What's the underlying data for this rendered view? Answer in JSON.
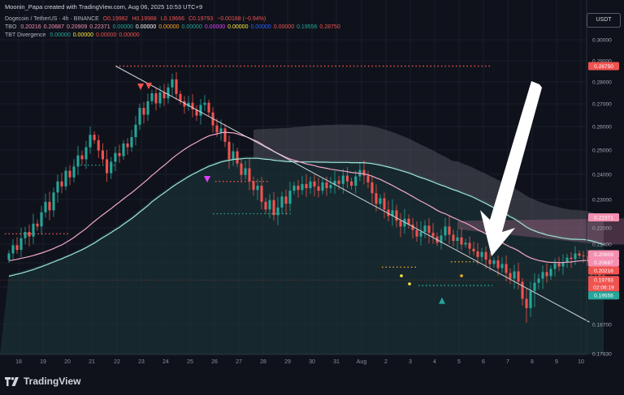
{
  "credit": "Moonin_Papa created with TradingView.com, Aug 06, 2025 10:53 UTC+9",
  "legend": {
    "symbol_line": {
      "name": "Dogecoin / TetherUS · 4h · BINANCE",
      "open": "O0.19982",
      "high": "H0.19988",
      "low": "L0.19666",
      "close": "C0.19793",
      "change": "−0.00188 (−0.94%)"
    },
    "tbo_line": {
      "name": "TBO",
      "values": [
        "0.20216",
        "0.20687",
        "0.20909",
        "0.22371",
        "0.00000",
        "0.00000",
        "0.00000",
        "0.00000",
        "0.00000",
        "0.00000",
        "0.00000",
        "0.00000",
        "0.19556",
        "0.28750"
      ],
      "colors": [
        "#f48fb1",
        "#f48fb1",
        "#f48fb1",
        "#f48fb1",
        "#26a69a",
        "#ffffff",
        "#ffa726",
        "#26a69a",
        "#e040fb",
        "#ffeb3b",
        "#2962ff",
        "#ef5350",
        "#26a69a",
        "#ef5350"
      ]
    },
    "tbt_line": {
      "name": "TBT Divergence",
      "values": [
        "0.00000",
        "0.00000",
        "0.00000",
        "0.00000"
      ],
      "colors": [
        "#26a69a",
        "#ffeb3b",
        "#ef5350",
        "#ef5350"
      ]
    }
  },
  "currency": "USDT",
  "brand": "TradingView",
  "chart_data": {
    "type": "candlestick",
    "x_ticks": [
      "18",
      "19",
      "20",
      "21",
      "22",
      "23",
      "24",
      "25",
      "26",
      "27",
      "28",
      "29",
      "30",
      "31",
      "Aug",
      "2",
      "3",
      "4",
      "5",
      "6",
      "7",
      "8",
      "9",
      "10"
    ],
    "y_ticks": [
      "0.30000",
      "0.29000",
      "0.28000",
      "0.27000",
      "0.26000",
      "0.25000",
      "0.24000",
      "0.23000",
      "0.22000",
      "0.21400",
      "0.20500",
      "0.19500",
      "0.18700",
      "0.17830"
    ],
    "ylim": [
      0.1783,
      0.305
    ],
    "price_labels": [
      {
        "value": 0.2875,
        "text": "0.28750",
        "color": "#ef5350"
      },
      {
        "value": 0.22371,
        "text": "0.22371",
        "color": "#f48fb1"
      },
      {
        "value": 0.20909,
        "text": "0.20909",
        "color": "#f48fb1"
      },
      {
        "value": 0.20687,
        "text": "0.20687",
        "color": "#f48fb1"
      },
      {
        "value": 0.20216,
        "text": "0.20216",
        "color": "#ef5350"
      },
      {
        "value": 0.19793,
        "text": "0.19793",
        "color": "#ef5350"
      },
      {
        "value": 0.19556,
        "text": "0.19556",
        "color": "#26a69a"
      }
    ],
    "countdown": "02:06:19",
    "start_day": 17.6,
    "candles_per_day": 6,
    "series": [
      {
        "name": "Close",
        "values": [
          0.2095,
          0.2135,
          0.2112,
          0.2162,
          0.2185,
          0.2168,
          0.2215,
          0.2205,
          0.2255,
          0.2292,
          0.2262,
          0.2328,
          0.2372,
          0.2352,
          0.2415,
          0.2388,
          0.2432,
          0.2478,
          0.2462,
          0.2512,
          0.2565,
          0.2542,
          0.2498,
          0.2462,
          0.2405,
          0.2452,
          0.2488,
          0.2475,
          0.2528,
          0.2512,
          0.2555,
          0.2608,
          0.2682,
          0.2652,
          0.2712,
          0.2748,
          0.2702,
          0.2752,
          0.2725,
          0.2775,
          0.2812,
          0.2745,
          0.2712,
          0.2688,
          0.2705,
          0.2675,
          0.2648,
          0.2695,
          0.2705,
          0.2662,
          0.2605,
          0.2575,
          0.2592,
          0.2535,
          0.2462,
          0.2495,
          0.2445,
          0.2398,
          0.2425,
          0.2372,
          0.2338,
          0.2355,
          0.2292,
          0.2265,
          0.2298,
          0.2245,
          0.2272,
          0.2312,
          0.2285,
          0.2335,
          0.2355,
          0.2338,
          0.2362,
          0.2345,
          0.2372,
          0.2352,
          0.2335,
          0.2368,
          0.2345,
          0.2358,
          0.2375,
          0.2362,
          0.2395,
          0.2372,
          0.2355,
          0.2392,
          0.2418,
          0.2395,
          0.2368,
          0.2325,
          0.2285,
          0.2305,
          0.2265,
          0.2242,
          0.2262,
          0.2225,
          0.2205,
          0.2232,
          0.2212,
          0.2192,
          0.2168,
          0.2185,
          0.2208,
          0.2182,
          0.2168,
          0.2145,
          0.2172,
          0.2205,
          0.2175,
          0.2152,
          0.2165,
          0.2138,
          0.2145,
          0.2118,
          0.2105,
          0.2078,
          0.2102,
          0.2065,
          0.2045,
          0.2062,
          0.2028,
          0.2045,
          0.2008,
          0.1985,
          0.2015,
          0.1972,
          0.1925,
          0.1905,
          0.1942,
          0.1968,
          0.1985,
          0.2012,
          0.1995,
          0.2025,
          0.2048,
          0.2035,
          0.2052,
          0.2075,
          0.2068,
          0.2095,
          0.2085,
          0.2082,
          0.2055,
          0.2025,
          0.2015,
          0.1998,
          0.1979
        ]
      }
    ],
    "ema_fast": [
      0.206,
      0.2063,
      0.2067,
      0.2071,
      0.2076,
      0.208,
      0.2085,
      0.2091,
      0.2097,
      0.2104,
      0.2111,
      0.2119,
      0.2128,
      0.2136,
      0.2146,
      0.2155,
      0.2165,
      0.2176,
      0.2187,
      0.2198,
      0.2211,
      0.2223,
      0.2235,
      0.2246,
      0.2257,
      0.2268,
      0.228,
      0.2291,
      0.2303,
      0.2315,
      0.2327,
      0.234,
      0.2354,
      0.2367,
      0.2381,
      0.2396,
      0.2409,
      0.2424,
      0.2437,
      0.2451,
      0.2466,
      0.2479,
      0.2491,
      0.2503,
      0.2514,
      0.2524,
      0.2533,
      0.2543,
      0.2552,
      0.256,
      0.2565,
      0.2569,
      0.2573,
      0.2576,
      0.2574,
      0.2573,
      0.2569,
      0.2563,
      0.2558,
      0.2551,
      0.2543,
      0.2536,
      0.2526,
      0.2515,
      0.2506,
      0.2495,
      0.2486,
      0.2478,
      0.247,
      0.2463,
      0.2458,
      0.2453,
      0.2448,
      0.2443,
      0.244,
      0.2436,
      0.2431,
      0.2428,
      0.2425,
      0.2421,
      0.2419,
      0.2416,
      0.2414,
      0.2411,
      0.2408,
      0.2406,
      0.2404,
      0.2402,
      0.2398,
      0.2393,
      0.2386,
      0.238,
      0.2372,
      0.2364,
      0.2356,
      0.2347,
      0.2338,
      0.233,
      0.2321,
      0.2312,
      0.2302,
      0.2294,
      0.2287,
      0.2279,
      0.2271,
      0.2262,
      0.2255,
      0.225,
      0.2243,
      0.2236,
      0.223,
      0.2223,
      0.2217,
      0.221,
      0.2202,
      0.2193,
      0.2186,
      0.2178,
      0.2169,
      0.2161,
      0.2153,
      0.2145,
      0.2136,
      0.2126,
      0.2118,
      0.2108,
      0.2095,
      0.2083,
      0.2074,
      0.2067,
      0.2061,
      0.2058,
      0.2054,
      0.2052,
      0.2052,
      0.2051,
      0.2051,
      0.2053,
      0.2054,
      0.2057,
      0.2059,
      0.2061,
      0.2061,
      0.2058,
      0.2055,
      0.2051,
      0.2045
    ],
    "ema_slow": [
      0.1995,
      0.1999,
      0.2003,
      0.2007,
      0.2012,
      0.2017,
      0.2022,
      0.2028,
      0.2034,
      0.204,
      0.2047,
      0.2054,
      0.2062,
      0.2069,
      0.2078,
      0.2086,
      0.2095,
      0.2104,
      0.2113,
      0.2123,
      0.2134,
      0.2144,
      0.2154,
      0.2164,
      0.2173,
      0.2183,
      0.2193,
      0.2202,
      0.2213,
      0.2223,
      0.2233,
      0.2244,
      0.2256,
      0.2267,
      0.2279,
      0.2292,
      0.2303,
      0.2315,
      0.2326,
      0.2338,
      0.235,
      0.2361,
      0.2371,
      0.2381,
      0.2391,
      0.24,
      0.2408,
      0.2417,
      0.2425,
      0.2433,
      0.2439,
      0.2445,
      0.2451,
      0.2455,
      0.2458,
      0.2461,
      0.2463,
      0.2464,
      0.2466,
      0.2466,
      0.2466,
      0.2466,
      0.2464,
      0.2462,
      0.2461,
      0.2458,
      0.2456,
      0.2455,
      0.2453,
      0.2452,
      0.2452,
      0.2451,
      0.2451,
      0.2451,
      0.2451,
      0.2451,
      0.245,
      0.245,
      0.245,
      0.2449,
      0.2449,
      0.2449,
      0.2449,
      0.2449,
      0.2448,
      0.2448,
      0.2448,
      0.2448,
      0.2446,
      0.2444,
      0.2441,
      0.2438,
      0.2434,
      0.243,
      0.2426,
      0.2421,
      0.2416,
      0.2411,
      0.2406,
      0.24,
      0.2393,
      0.2387,
      0.2382,
      0.2376,
      0.237,
      0.2363,
      0.2357,
      0.2352,
      0.2345,
      0.2339,
      0.2334,
      0.2327,
      0.2321,
      0.2315,
      0.2308,
      0.23,
      0.2293,
      0.2286,
      0.2278,
      0.2271,
      0.2263,
      0.2256,
      0.2248,
      0.2239,
      0.2232,
      0.2223,
      0.2213,
      0.2203,
      0.2195,
      0.2189,
      0.2183,
      0.2179,
      0.2174,
      0.2171,
      0.2168,
      0.2165,
      0.2162,
      0.216,
      0.2158,
      0.2158,
      0.2157,
      0.2157,
      0.2155,
      0.2152,
      0.2148,
      0.2143,
      0.2137
    ],
    "resistance_level": 0.2875,
    "support_level": 0.1957,
    "trendline": {
      "from": [
        21.95,
        0.2875
      ],
      "to": [
        10.35,
        0.1875
      ]
    },
    "markers": [
      {
        "day": 22.97,
        "price": 0.2748,
        "shape": "triangle-down",
        "color": "#ef5350"
      },
      {
        "day": 23.3,
        "price": 0.2752,
        "shape": "triangle-down",
        "color": "#ef5350"
      },
      {
        "day": 25.7,
        "price": 0.2355,
        "shape": "triangle-down",
        "color": "#e040fb"
      },
      {
        "day": 4.3,
        "price": 0.1935,
        "shape": "triangle-up",
        "color": "#26a69a"
      }
    ]
  }
}
